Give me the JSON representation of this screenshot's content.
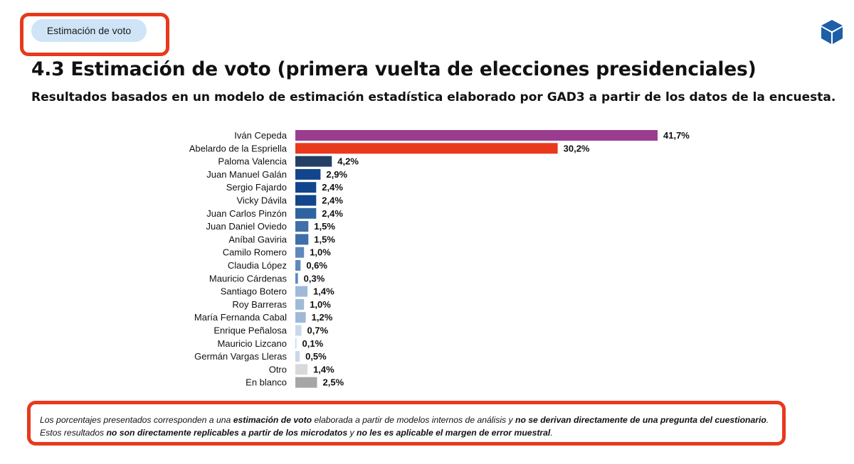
{
  "badge": {
    "label": "Estimación de voto"
  },
  "logo": {
    "icon": "cube-icon",
    "color": "#1e5fa8"
  },
  "header": {
    "title": "4.3 Estimación de voto (primera vuelta de elecciones presidenciales)",
    "subtitle": "Resultados basados en un modelo de estimación estadística elaborado por GAD3 a partir de los datos de la encuesta."
  },
  "chart_data": {
    "type": "bar",
    "orientation": "horizontal",
    "categories": [
      "Iván Cepeda",
      "Abelardo de la Espriella",
      "Paloma Valencia",
      "Juan Manuel Galán",
      "Sergio Fajardo",
      "Vicky Dávila",
      "Juan Carlos Pinzón",
      "Juan Daniel Oviedo",
      "Aníbal Gaviria",
      "Camilo Romero",
      "Claudia López",
      "Mauricio Cárdenas",
      "Santiago Botero",
      "Roy Barreras",
      "María Fernanda Cabal",
      "Enrique Peñalosa",
      "Mauricio Lizcano",
      "Germán Vargas Lleras",
      "Otro",
      "En blanco"
    ],
    "values": [
      41.7,
      30.2,
      4.2,
      2.9,
      2.4,
      2.4,
      2.4,
      1.5,
      1.5,
      1.0,
      0.6,
      0.3,
      1.4,
      1.0,
      1.2,
      0.7,
      0.1,
      0.5,
      1.4,
      2.5
    ],
    "labels": [
      "41,7%",
      "30,2%",
      "4,2%",
      "2,9%",
      "2,4%",
      "2,4%",
      "2,4%",
      "1,5%",
      "1,5%",
      "1,0%",
      "0,6%",
      "0,3%",
      "1,4%",
      "1,0%",
      "1,2%",
      "0,7%",
      "0,1%",
      "0,5%",
      "1,4%",
      "2,5%"
    ],
    "colors": [
      "#9b3d8f",
      "#e8391d",
      "#243f66",
      "#12458b",
      "#12458b",
      "#12458b",
      "#2e64a0",
      "#3f6fa8",
      "#3f6fa8",
      "#5f88bd",
      "#5f88bd",
      "#5f88bd",
      "#9fb9d8",
      "#9fb9d8",
      "#9fb9d8",
      "#c9d8ea",
      "#c9d8ea",
      "#c9d8ea",
      "#d9d9d9",
      "#a6a6a6"
    ],
    "title": "",
    "xlabel": "",
    "ylabel": "",
    "xlim": [
      0,
      41.7
    ],
    "grid": false,
    "legend": "none"
  },
  "footnote": {
    "segments": [
      {
        "text": "Los porcentajes presentados corresponden a una ",
        "bold": false
      },
      {
        "text": "estimación de voto",
        "bold": true
      },
      {
        "text": " elaborada a partir de modelos internos de análisis y ",
        "bold": false
      },
      {
        "text": "no se derivan directamente de una pregunta del cuestionario",
        "bold": true
      },
      {
        "text": ". Estos resultados ",
        "bold": false
      },
      {
        "text": "no son directamente replicables a partir de los microdatos",
        "bold": true
      },
      {
        "text": " y ",
        "bold": false
      },
      {
        "text": "no les es aplicable el margen de error muestral",
        "bold": true
      },
      {
        "text": ".",
        "bold": false
      }
    ]
  }
}
